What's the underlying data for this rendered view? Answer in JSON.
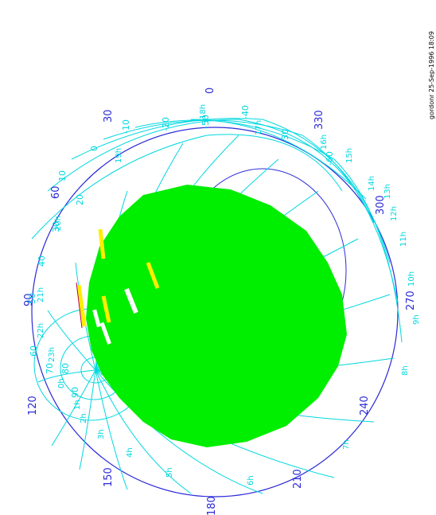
{
  "credit": "gordonr 25-Sep-1996 18:09",
  "azimuth_labels": [
    "0",
    "30",
    "60",
    "90",
    "120",
    "150",
    "180",
    "210",
    "240",
    "270",
    "300",
    "330"
  ],
  "declination_labels": [
    "-20",
    "-30",
    "-40",
    "-50",
    "-60",
    "-10",
    "0",
    "10",
    "20",
    "30",
    "40",
    "50",
    "60",
    "70",
    "80",
    "90"
  ],
  "hour_labels": [
    "10h",
    "11h",
    "12h",
    "13h",
    "14h",
    "15h",
    "16h",
    "17h",
    "18h",
    "19h",
    "20h",
    "21h",
    "22h",
    "23h",
    "0h",
    "1h",
    "2h",
    "3h",
    "4h",
    "5h",
    "6h",
    "7h",
    "8h",
    "9h"
  ],
  "colors": {
    "horizon": "#2a2ad8",
    "grid": "#00d8e0",
    "coverage": "#00ee00",
    "highlight": "#ffee00"
  }
}
